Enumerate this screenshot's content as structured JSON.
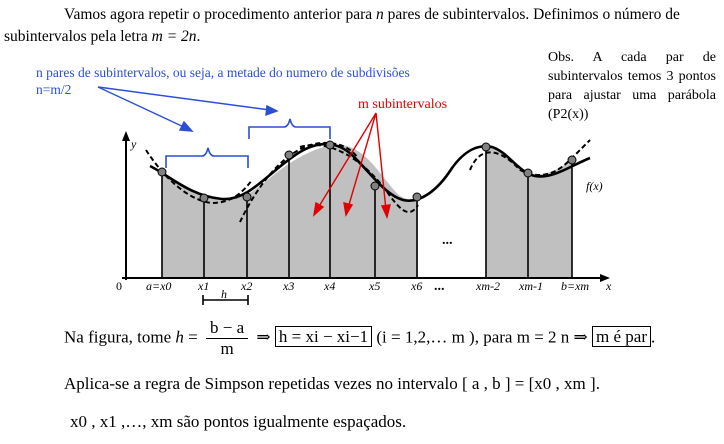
{
  "intro": {
    "part1": "Vamos agora repetir o procedimento anterior para ",
    "n": "n",
    "part2": " pares de subintervalos. Definimos o número de subintervalos pela letra ",
    "eq": "m = 2n",
    "part3": "."
  },
  "obs": "Obs. A cada par de subintervalos temos 3 pontos para ajustar uma parábola (P2(x))",
  "blue_note": {
    "line1": "n  pares de subintervalos, ou seja, a metade do numero de subdivisões",
    "line2": "n=m/2"
  },
  "red_note": "m subintervalos",
  "figure": {
    "y_label": "y",
    "origin": "0",
    "x_label": "x",
    "fx_label": "f(x)",
    "h_label": "h",
    "dots": "...",
    "ticks": [
      "a=x0",
      "x1",
      "x2",
      "x3",
      "x4",
      "x5",
      "x6",
      "xm-2",
      "xm-1",
      "b=xm"
    ]
  },
  "formula1": {
    "lead": "Na figura, tome ",
    "h": "h",
    "eq": " = ",
    "num": "b − a",
    "den": "m",
    "box1": "h = xi − xi−1",
    "mid": " (i = 1,2,… m ), para  m = 2 n ",
    "box2": "m  é par",
    "end": "."
  },
  "formula2": "Aplica-se a regra de Simpson repetidas vezes no intervalo [ a , b ] = [x0 , xm ].",
  "formula3": "x0 , x1 ,…, xm  são pontos igualmente espaçados.",
  "colors": {
    "fill": "#c0c0c0",
    "blue": "#2a4fd6",
    "red": "#e00000"
  }
}
